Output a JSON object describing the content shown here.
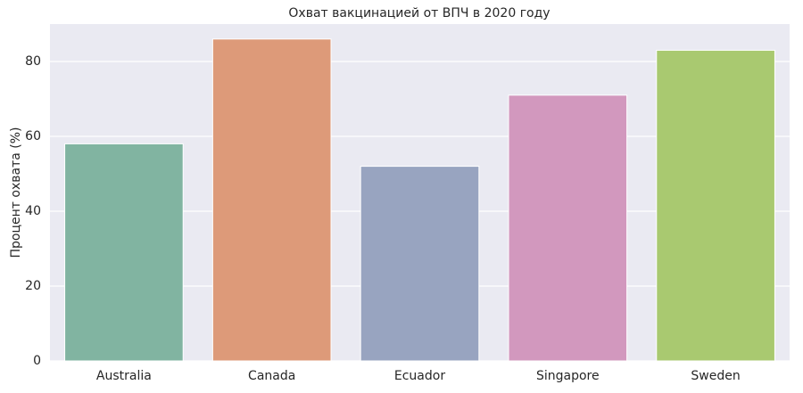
{
  "chart_data": {
    "type": "bar",
    "title": "Охват вакцинацией от ВПЧ в 2020 году",
    "ylabel": "Процент охвата (%)",
    "categories": [
      "Australia",
      "Canada",
      "Ecuador",
      "Singapore",
      "Sweden"
    ],
    "values": [
      58,
      86,
      52,
      71,
      83
    ],
    "colors": [
      "#81b4a1",
      "#dd9a79",
      "#98a4c0",
      "#d298be",
      "#a9c970"
    ],
    "ylim": [
      0,
      90
    ],
    "yticks": [
      0,
      20,
      40,
      60,
      80
    ],
    "grid": true
  }
}
